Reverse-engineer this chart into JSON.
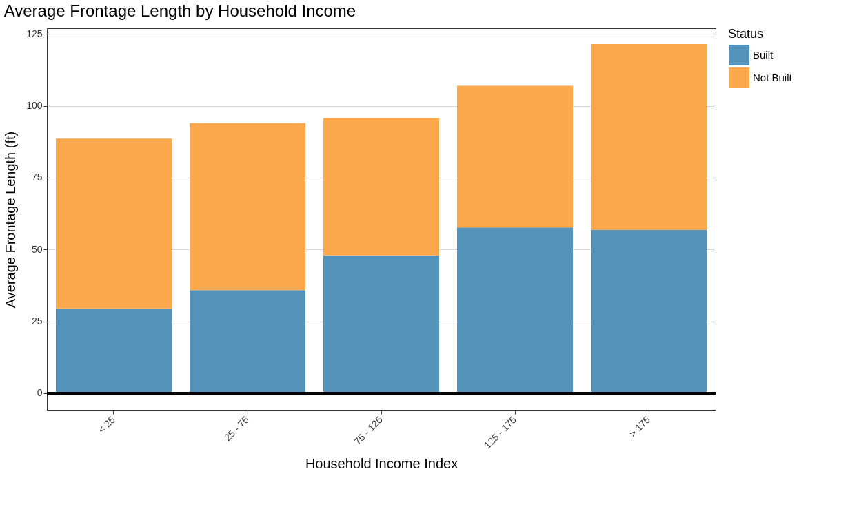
{
  "chart_data": {
    "type": "bar",
    "title": "Average Frontage Length by Household Income",
    "xlabel": "Household Income Index",
    "ylabel": "Average Frontage Length (ft)",
    "legend_title": "Status",
    "categories": [
      "< 25",
      "25 - 75",
      "75 - 125",
      "125 - 175",
      "> 175"
    ],
    "series": [
      {
        "name": "Built",
        "color": "#5593bb",
        "values": [
          29.5,
          35.9,
          48.0,
          57.7,
          56.9
        ]
      },
      {
        "name": "Not Built",
        "color": "#fba74b",
        "values": [
          59.1,
          58.1,
          47.7,
          49.3,
          64.6
        ]
      }
    ],
    "stacked": true,
    "ylim": [
      -6,
      127
    ],
    "yticks": [
      0,
      25,
      50,
      75,
      100,
      125
    ],
    "grid": "y",
    "legend": "right",
    "ref_lines": [
      {
        "axis": "y",
        "value": 0,
        "color": "#000000"
      }
    ]
  }
}
